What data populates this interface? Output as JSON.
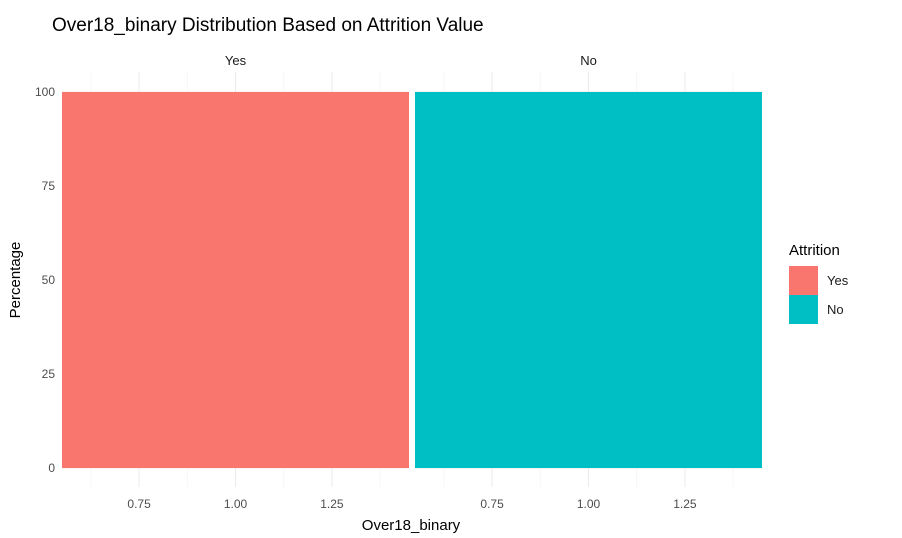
{
  "chart_data": {
    "type": "bar",
    "title": "Over18_binary Distribution Based on Attrition Value",
    "xlabel": "Over18_binary",
    "ylabel": "Percentage",
    "ylim": [
      0,
      100
    ],
    "xlim": [
      0.55,
      1.45
    ],
    "x_ticks": [
      "0.75",
      "1.00",
      "1.25"
    ],
    "x_tick_values": [
      0.75,
      1.0,
      1.25
    ],
    "y_ticks": [
      "0",
      "25",
      "50",
      "75",
      "100"
    ],
    "y_tick_values": [
      0,
      25,
      50,
      75,
      100
    ],
    "grid": true,
    "facets": [
      {
        "label": "Yes",
        "x": 1,
        "width": 0.9,
        "value": 100,
        "color": "#F8766D"
      },
      {
        "label": "No",
        "x": 1,
        "width": 0.9,
        "value": 100,
        "color": "#00BFC4"
      }
    ],
    "legend": {
      "title": "Attrition",
      "position": "right",
      "items": [
        {
          "label": "Yes",
          "color": "#F8766D"
        },
        {
          "label": "No",
          "color": "#00BFC4"
        }
      ]
    }
  }
}
